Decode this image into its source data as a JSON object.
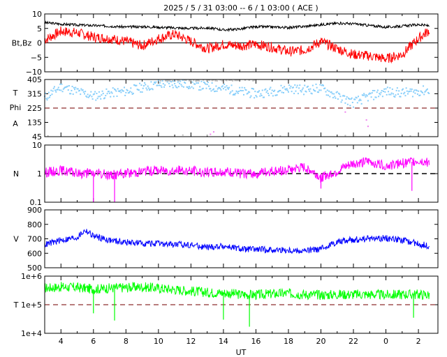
{
  "title": "2025 /  5 / 31   03:00 --   6 /  1   03:00 ( ACE )",
  "xlabel": "UT",
  "x_tick_labels": [
    "4",
    "6",
    "8",
    "10",
    "12",
    "14",
    "16",
    "18",
    "20",
    "22",
    "0",
    "2"
  ],
  "colors": {
    "bt": "#000000",
    "bz": "#ff0000",
    "temp_proxy": "#87cefa",
    "phi_away": "#c0c0c0",
    "phi_toward": "#ee82ee",
    "density": "#ff00ff",
    "speed": "#0000ff",
    "temperature": "#00ff00",
    "ref_line": "#a05050"
  },
  "chart_data": [
    {
      "type": "line",
      "panel": "magnetic-field",
      "ylabel": "Bt,Bz",
      "ylim": [
        -10,
        10
      ],
      "y_tick_labels": [
        "10",
        "5",
        "0",
        "−5",
        "−10"
      ],
      "x_hours_ut": [
        3,
        4,
        5,
        6,
        7,
        8,
        9,
        10,
        11,
        12,
        13,
        14,
        15,
        16,
        17,
        18,
        19,
        20,
        21,
        22,
        23,
        24,
        25,
        26,
        26.7
      ],
      "series": [
        {
          "name": "Bt",
          "values": [
            7,
            6.5,
            6.2,
            6,
            5.8,
            5.5,
            5.6,
            5.4,
            5.2,
            5.0,
            5.2,
            4.5,
            4.8,
            5.6,
            5.5,
            5.3,
            5.7,
            6.3,
            6.8,
            6.6,
            6.0,
            5.4,
            5.8,
            6.3,
            5.9
          ]
        },
        {
          "name": "Bz",
          "values": [
            1,
            4,
            3.5,
            2,
            1.5,
            0.5,
            -1,
            1.5,
            3,
            0.5,
            -2,
            -0.5,
            -1,
            -0.5,
            -1.5,
            -3,
            -2.5,
            0.5,
            -2,
            -4,
            -4.5,
            -5.5,
            -4,
            1.5,
            4.5
          ]
        }
      ],
      "ref_line": 0
    },
    {
      "type": "scatter",
      "panel": "temperature-phi",
      "ylabel_lines": [
        "T",
        "Phi",
        "A"
      ],
      "ylim": [
        45,
        405
      ],
      "y_tick_labels": [
        "405",
        "315",
        "225",
        "135",
        "45"
      ],
      "x_hours_ut": [
        3,
        4,
        5,
        6,
        7,
        8,
        9,
        10,
        11,
        12,
        13,
        14,
        15,
        16,
        17,
        18,
        19,
        20,
        21,
        22,
        23,
        24,
        25,
        26,
        26.7
      ],
      "series": [
        {
          "name": "main",
          "values": [
            290,
            360,
            330,
            300,
            320,
            330,
            355,
            375,
            380,
            375,
            360,
            350,
            330,
            315,
            330,
            350,
            340,
            350,
            300,
            260,
            300,
            330,
            320,
            330,
            340
          ]
        },
        {
          "name": "magenta-dips",
          "x": [
            13.2,
            13.4,
            21.5,
            22.8,
            22.9
          ],
          "values": [
            60,
            75,
            200,
            150,
            110
          ]
        },
        {
          "name": "grey-low",
          "x": [
            3.2,
            11.5,
            13.0,
            16.5,
            17.5,
            19.0,
            21.5,
            25.5
          ],
          "values": [
            50,
            55,
            55,
            52,
            50,
            55,
            52,
            50
          ]
        }
      ],
      "ref_line": 225
    },
    {
      "type": "line",
      "panel": "density",
      "ylabel": "N",
      "scale": "log",
      "ylim": [
        0.1,
        10
      ],
      "y_tick_labels": [
        "10",
        "1",
        "0.1"
      ],
      "x_hours_ut": [
        3,
        4,
        5,
        6,
        7,
        8,
        9,
        10,
        11,
        12,
        13,
        14,
        15,
        16,
        17,
        18,
        19,
        20,
        21,
        22,
        23,
        24,
        25,
        26,
        26.7
      ],
      "values": [
        1.1,
        1.3,
        1.0,
        1.05,
        0.9,
        1.0,
        1.2,
        1.3,
        1.3,
        1.25,
        1.1,
        1.15,
        1.0,
        1.0,
        1.2,
        1.35,
        1.6,
        0.7,
        1.2,
        2.2,
        2.6,
        1.9,
        2.3,
        2.8,
        2.5
      ],
      "spikes": [
        {
          "x": 6.0,
          "y": 0.1
        },
        {
          "x": 7.3,
          "y": 0.1
        },
        {
          "x": 20.0,
          "y": 0.3
        },
        {
          "x": 25.6,
          "y": 0.25
        }
      ],
      "ref_line": 1
    },
    {
      "type": "line",
      "panel": "speed",
      "ylabel": "V",
      "ylim": [
        500,
        900
      ],
      "y_tick_labels": [
        "900",
        "800",
        "700",
        "600",
        "500"
      ],
      "x_hours_ut": [
        3,
        4,
        5,
        5.5,
        6,
        7,
        8,
        9,
        10,
        11,
        12,
        13,
        14,
        15,
        16,
        17,
        18,
        19,
        20,
        21,
        22,
        23,
        24,
        25,
        26,
        26.7
      ],
      "values": [
        660,
        690,
        710,
        760,
        720,
        690,
        675,
        670,
        665,
        660,
        660,
        640,
        650,
        630,
        625,
        625,
        620,
        615,
        630,
        680,
        695,
        700,
        705,
        690,
        665,
        650
      ]
    },
    {
      "type": "line",
      "panel": "temperature",
      "ylabel": "T",
      "scale": "log",
      "ylim": [
        10000,
        1000000
      ],
      "y_tick_labels": [
        "1e+6",
        "1e+5",
        "1e+4"
      ],
      "x_hours_ut": [
        3,
        4,
        5,
        6,
        7,
        8,
        9,
        10,
        11,
        12,
        13,
        14,
        15,
        16,
        17,
        18,
        19,
        20,
        21,
        22,
        23,
        24,
        25,
        26,
        26.7
      ],
      "values": [
        380000,
        420000,
        400000,
        350000,
        380000,
        400000,
        420000,
        380000,
        340000,
        300000,
        270000,
        260000,
        230000,
        220000,
        240000,
        250000,
        230000,
        220000,
        230000,
        230000,
        230000,
        220000,
        230000,
        230000,
        220000
      ],
      "spikes": [
        {
          "x": 6.0,
          "y": 50000
        },
        {
          "x": 7.3,
          "y": 28000
        },
        {
          "x": 14.0,
          "y": 30000
        },
        {
          "x": 15.6,
          "y": 17000
        },
        {
          "x": 25.7,
          "y": 35000
        }
      ],
      "ref_line": 100000
    }
  ]
}
